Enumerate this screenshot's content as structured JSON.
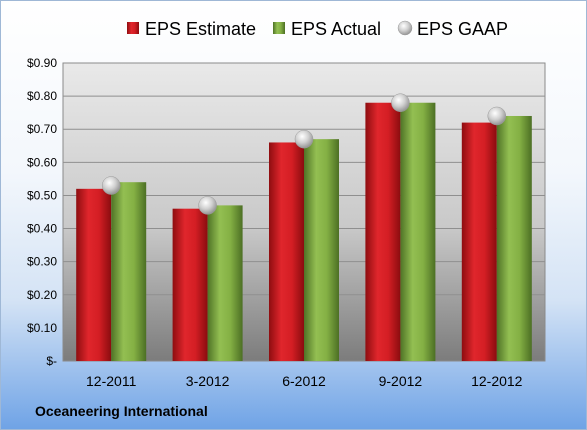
{
  "chart_data": {
    "type": "bar",
    "categories": [
      "12-2011",
      "3-2012",
      "6-2012",
      "9-2012",
      "12-2012"
    ],
    "series": [
      {
        "name": "EPS Estimate",
        "type": "bar",
        "color": "#c0161c",
        "values": [
          0.52,
          0.46,
          0.66,
          0.78,
          0.72
        ]
      },
      {
        "name": "EPS Actual",
        "type": "bar",
        "color": "#77a23a",
        "values": [
          0.54,
          0.47,
          0.67,
          0.78,
          0.74
        ]
      },
      {
        "name": "EPS GAAP",
        "type": "scatter",
        "color": "#b8b8b8",
        "values": [
          0.53,
          0.47,
          0.67,
          0.78,
          0.74
        ]
      }
    ],
    "ylim": [
      0,
      0.9
    ],
    "yticks": [
      0,
      0.1,
      0.2,
      0.3,
      0.4,
      0.5,
      0.6,
      0.7,
      0.8,
      0.9
    ],
    "ytick_labels": [
      "$-",
      "$0.10",
      "$0.20",
      "$0.30",
      "$0.40",
      "$0.50",
      "$0.60",
      "$0.70",
      "$0.80",
      "$0.90"
    ],
    "grid": true,
    "legend_position": "top"
  },
  "footer": {
    "company": "Oceaneering International"
  }
}
